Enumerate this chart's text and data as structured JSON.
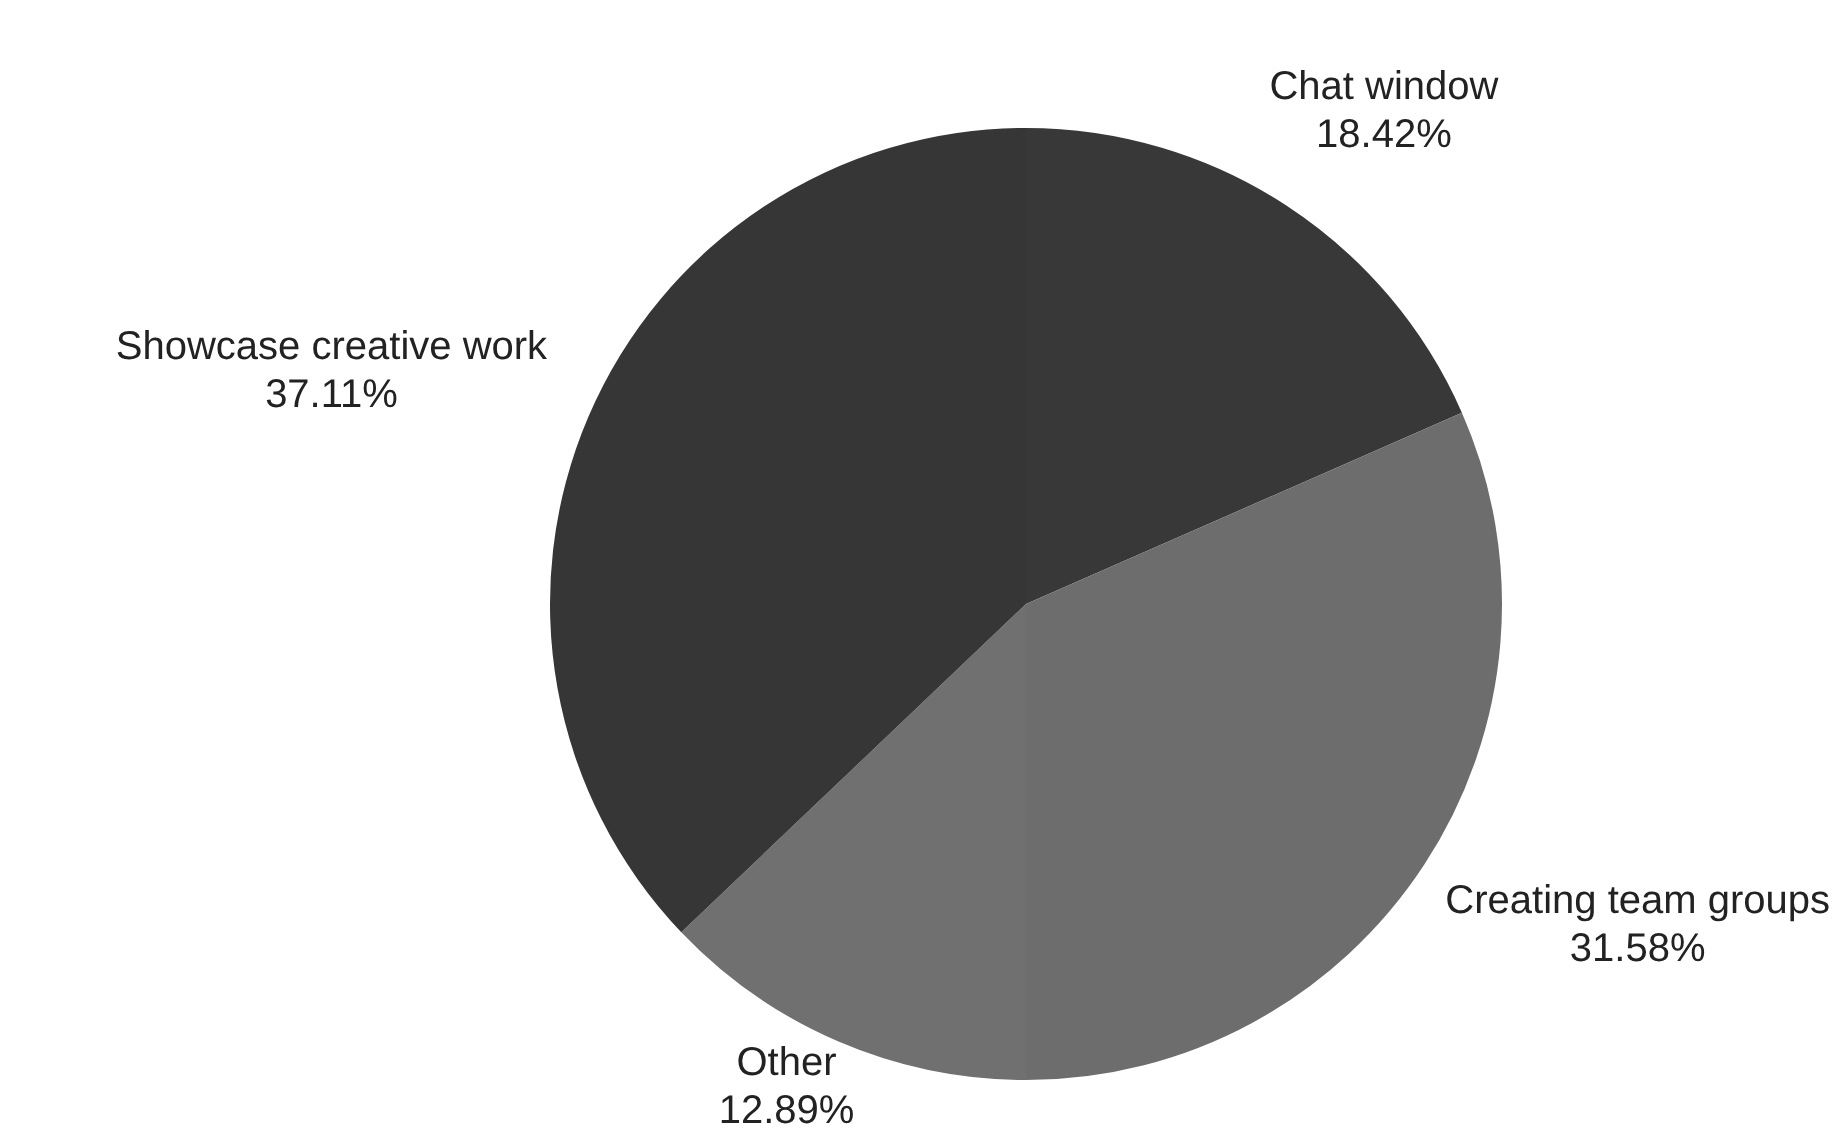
{
  "chart_data": {
    "type": "pie",
    "categories": [
      "Chat window",
      "Creating team groups",
      "Other",
      "Showcase creative work"
    ],
    "values": [
      18.42,
      31.58,
      12.89,
      37.11
    ],
    "value_labels": [
      "18.42%",
      "31.58%",
      "12.89%",
      "37.11%"
    ],
    "colors": [
      "#383838",
      "#6d6d6d",
      "#707070",
      "#363636"
    ]
  }
}
